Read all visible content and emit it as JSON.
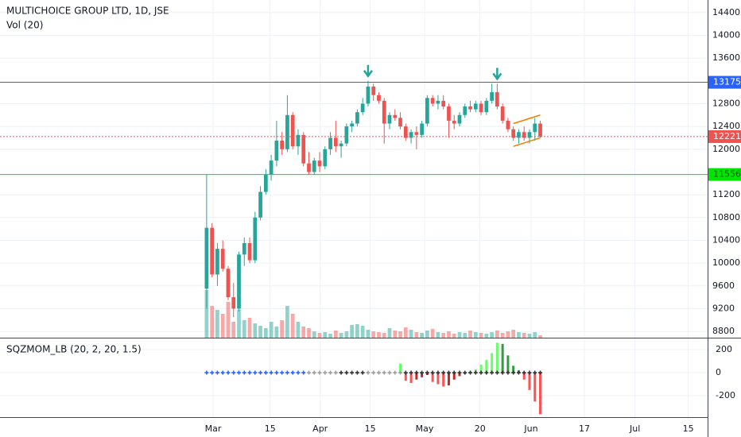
{
  "chart_data": {
    "type": "candlestick",
    "title": "MULTICHOICE GROUP LTD, 1D, JSE",
    "volume_label": "Vol (20)",
    "open": [
      9550,
      10620,
      9800,
      10250,
      9900,
      9400,
      9200,
      10150,
      10350,
      10050,
      10800,
      11250,
      11550,
      11800,
      12150,
      12000,
      12600,
      12050,
      12250,
      11750,
      11600,
      11800,
      11700,
      12000,
      12200,
      12050,
      12100,
      12400,
      12450,
      12650,
      12800,
      13100,
      12950,
      12850,
      12450,
      12600,
      12550,
      12400,
      12200,
      12300,
      12250,
      12450,
      12900,
      12800,
      12850,
      12750,
      12500,
      12450,
      12600,
      12750,
      12700,
      12800,
      12650,
      12850,
      13000,
      12750,
      12500,
      12350,
      12200,
      12300,
      12200,
      12300,
      12450
    ],
    "high": [
      11560,
      10700,
      10350,
      10400,
      9950,
      9650,
      10200,
      10450,
      10450,
      10900,
      11350,
      11650,
      11900,
      12500,
      12300,
      12950,
      12650,
      12350,
      12300,
      11950,
      11850,
      11950,
      12050,
      12300,
      12500,
      12150,
      12450,
      12500,
      12700,
      12900,
      13200,
      13150,
      13000,
      12900,
      12650,
      12700,
      12650,
      12450,
      12350,
      12400,
      12500,
      12950,
      12950,
      12950,
      12950,
      12800,
      12600,
      12650,
      12800,
      12850,
      12850,
      12850,
      12900,
      13150,
      13150,
      12800,
      12550,
      12400,
      12350,
      12400,
      12350,
      12550,
      12500
    ],
    "low": [
      9200,
      9750,
      9600,
      9850,
      9350,
      9050,
      9150,
      9950,
      10000,
      10000,
      10750,
      11200,
      11450,
      11700,
      11900,
      11950,
      12000,
      11900,
      11700,
      11550,
      11550,
      11600,
      11650,
      11900,
      11950,
      11850,
      12050,
      12300,
      12400,
      12600,
      12750,
      12850,
      12800,
      12100,
      12350,
      12500,
      12350,
      12150,
      12100,
      12000,
      12200,
      12400,
      12750,
      12700,
      12700,
      12200,
      12350,
      12400,
      12550,
      12650,
      12650,
      12600,
      12600,
      12800,
      12700,
      12450,
      12300,
      12150,
      12100,
      12150,
      12100,
      12150,
      12200
    ],
    "close": [
      10620,
      9800,
      10250,
      9900,
      9400,
      9200,
      10150,
      10350,
      10050,
      10800,
      11250,
      11550,
      11800,
      12150,
      12000,
      12600,
      12050,
      12250,
      11750,
      11600,
      11800,
      11700,
      12000,
      12200,
      12050,
      12100,
      12400,
      12450,
      12650,
      12800,
      13100,
      12950,
      12850,
      12450,
      12600,
      12550,
      12400,
      12200,
      12300,
      12250,
      12450,
      12900,
      12800,
      12850,
      12750,
      12500,
      12450,
      12600,
      12750,
      12700,
      12800,
      12650,
      12850,
      13000,
      12750,
      12500,
      12350,
      12200,
      12300,
      12200,
      12300,
      12450,
      12221
    ],
    "volume": [
      600,
      400,
      350,
      300,
      450,
      200,
      350,
      220,
      250,
      180,
      150,
      120,
      200,
      140,
      220,
      400,
      300,
      200,
      140,
      120,
      80,
      60,
      70,
      50,
      90,
      60,
      80,
      160,
      170,
      150,
      100,
      80,
      70,
      60,
      120,
      90,
      80,
      130,
      100,
      70,
      60,
      90,
      110,
      70,
      60,
      80,
      50,
      70,
      60,
      90,
      70,
      60,
      50,
      70,
      90,
      60,
      80,
      100,
      70,
      60,
      50,
      70,
      30
    ],
    "up_color": "#26a69a",
    "down_color": "#ef5350",
    "ylim": [
      8690,
      14620
    ],
    "yticks": [
      8800,
      9200,
      9600,
      10000,
      10400,
      10800,
      11200,
      12000,
      12400,
      12800,
      13600,
      14000,
      14400
    ],
    "xlim": [
      -38.4,
      93.1
    ],
    "xticks": [
      {
        "value": 1.2,
        "label": "Mar"
      },
      {
        "value": 11.8,
        "label": "15"
      },
      {
        "value": 21.1,
        "label": "Apr"
      },
      {
        "value": 30.4,
        "label": "15"
      },
      {
        "value": 40.5,
        "label": "May"
      },
      {
        "value": 50.8,
        "label": "20"
      },
      {
        "value": 60.3,
        "label": "Jun"
      },
      {
        "value": 70.2,
        "label": "17"
      },
      {
        "value": 79.6,
        "label": "Jul"
      },
      {
        "value": 89.5,
        "label": "15"
      }
    ],
    "grid": true,
    "levels": [
      {
        "value": 13175,
        "color": "#2962ff",
        "style": "solid"
      },
      {
        "value": 12221,
        "color": "#ef5350",
        "style": "dotted"
      },
      {
        "value": 11556,
        "color": "#00e600",
        "style": "solid"
      }
    ],
    "trendlines": [
      {
        "x": [
          57,
          62
        ],
        "y": [
          12450,
          12600
        ],
        "color": "#f57c00"
      },
      {
        "x": [
          57,
          62
        ],
        "y": [
          12050,
          12200
        ],
        "color": "#f57c00"
      }
    ],
    "arrows": [
      30,
      54
    ],
    "arrow_color": "#26a69a",
    "indicator": {
      "type": "bar",
      "title": "SQZMOM_LB (20, 2, 20, 1.5)",
      "values": [
        null,
        null,
        null,
        null,
        null,
        null,
        null,
        null,
        null,
        null,
        null,
        null,
        null,
        null,
        null,
        null,
        null,
        null,
        null,
        null,
        null,
        null,
        null,
        null,
        null,
        null,
        null,
        null,
        null,
        null,
        null,
        null,
        null,
        null,
        null,
        null,
        80,
        -70,
        -90,
        -60,
        -40,
        -20,
        -80,
        -100,
        -120,
        -110,
        -60,
        -30,
        -10,
        10,
        30,
        70,
        110,
        170,
        260,
        250,
        150,
        60,
        20,
        -60,
        -150,
        -250,
        -360
      ],
      "palette": [
        "#66ff66",
        "#2e9e3e",
        "#ff5252",
        "#c62828"
      ],
      "squeeze": [
        "#2962ff",
        "#2962ff",
        "#2962ff",
        "#2962ff",
        "#2962ff",
        "#2962ff",
        "#2962ff",
        "#2962ff",
        "#2962ff",
        "#2962ff",
        "#2962ff",
        "#2962ff",
        "#2962ff",
        "#2962ff",
        "#2962ff",
        "#2962ff",
        "#2962ff",
        "#2962ff",
        "#2962ff",
        "#9e9e9e",
        "#9e9e9e",
        "#9e9e9e",
        "#9e9e9e",
        "#9e9e9e",
        "#9e9e9e",
        "#333333",
        "#333333",
        "#333333",
        "#333333",
        "#333333",
        "#9e9e9e",
        "#9e9e9e",
        "#9e9e9e",
        "#9e9e9e",
        "#9e9e9e",
        "#9e9e9e",
        "#9e9e9e",
        "#333333",
        "#333333",
        "#333333",
        "#333333",
        "#333333",
        "#333333",
        "#333333",
        "#333333",
        "#333333",
        "#333333",
        "#333333",
        "#333333",
        "#333333",
        "#333333",
        "#333333",
        "#333333",
        "#333333",
        "#333333",
        "#333333",
        "#333333",
        "#333333",
        "#333333",
        "#333333",
        "#333333",
        "#333333",
        "#333333"
      ],
      "ylim": [
        -386,
        297
      ],
      "yticks": [
        200,
        0,
        -200
      ]
    }
  }
}
